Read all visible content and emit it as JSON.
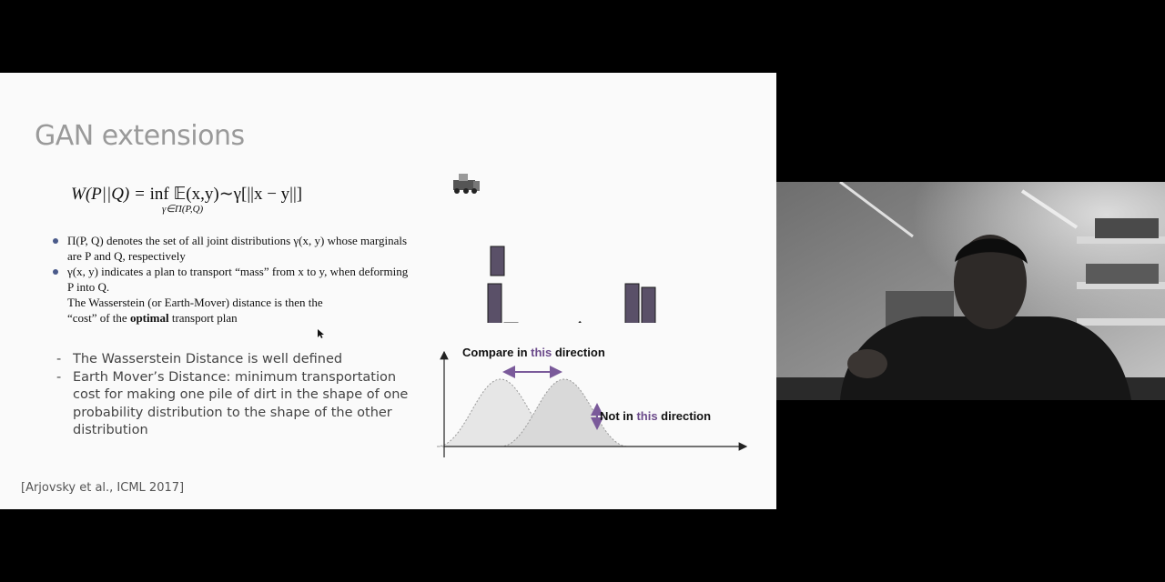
{
  "slide": {
    "title": "GAN extensions",
    "formula": {
      "lhs": "W(P||Q) = ",
      "op": "inf",
      "rhs": " 𝔼(x,y)∼γ[||x − y||]",
      "sub": "γ∈Π(P,Q)"
    },
    "math_bullets": [
      "Π(P, Q) denotes the set of all joint distributions γ(x, y) whose marginals are P and Q, respectively",
      "γ(x, y) indicates a plan to transport “mass” from x to y, when deforming P into Q."
    ],
    "math_plain_line1": "The Wasserstein (or Earth-Mover) distance is then the",
    "math_plain_line2_prefix": "“cost” of the ",
    "math_plain_bold": "optimal",
    "math_plain_line2_suffix": " transport plan",
    "dash_bullets": [
      "The Wasserstein Distance is well defined",
      "Earth Mover’s Distance: minimum transportation cost for making one pile of dirt in the shape of one probability distribution to the shape of the other distribution"
    ],
    "dash_symbol": "-",
    "citation": "[Arjovsky et al., ICML 2017]",
    "diagram": {
      "not_equal": "≠",
      "compare_prefix": "Compare in ",
      "compare_highlight": "this",
      "compare_suffix": " direction",
      "not_prefix": "Not in ",
      "not_highlight": "this",
      "not_suffix": " direction"
    }
  },
  "colors": {
    "bar": "#5a5068",
    "highlight": "#6b4a8a",
    "arrow": "#7a5a9a"
  },
  "icons": [
    "bulldozer-icon",
    "mouse-cursor-icon"
  ]
}
